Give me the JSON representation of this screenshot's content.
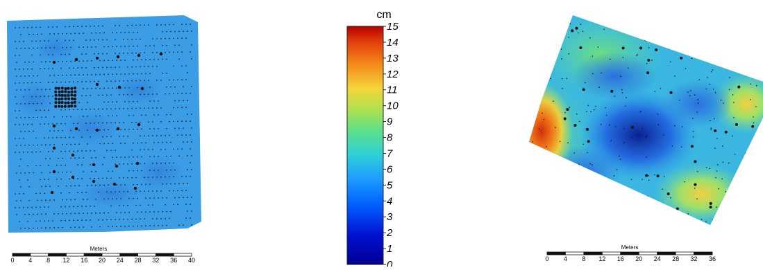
{
  "colorbar": {
    "unit": "cm",
    "ticks": [
      "15",
      "14",
      "13",
      "12",
      "11",
      "10",
      "9",
      "8",
      "7",
      "6",
      "5",
      "4",
      "3",
      "2",
      "1",
      "0"
    ]
  },
  "left_scalebar": {
    "title": "Meters",
    "labels": [
      "0",
      "4",
      "8",
      "12",
      "16",
      "20",
      "24",
      "28",
      "32",
      "36",
      "40"
    ]
  },
  "right_scalebar": {
    "title": "Meters",
    "labels": [
      "0",
      "4",
      "8",
      "12",
      "16",
      "20",
      "24",
      "28",
      "32",
      "36"
    ]
  },
  "colors": {
    "low": "#00008f",
    "mid": "#1e90ff",
    "high": "#b40000",
    "map_base": "#3aa0e8"
  }
}
